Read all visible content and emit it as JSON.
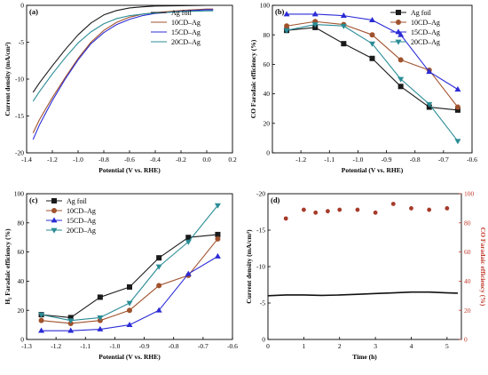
{
  "colors": {
    "ag_foil": "#1a1a1a",
    "cd10": "#a0522d",
    "cd15": "#2b2bd6",
    "cd20": "#2a8c96",
    "time_current": "#111111",
    "time_fe": "#a63a2a",
    "fe_axis": "#c0392b"
  },
  "chart_data": [
    {
      "id": "a",
      "panel_label": "(a)",
      "type": "line",
      "xlabel": "Potential (V vs. RHE)",
      "ylabel": "Current density (mA/cm²)",
      "xlim": [
        -1.4,
        0.2
      ],
      "ylim": [
        -20,
        0
      ],
      "xticks": [
        -1.4,
        -1.2,
        -1.0,
        -0.8,
        -0.6,
        -0.4,
        -0.2,
        0.0,
        0.2
      ],
      "xtick_labels": [
        "-1.4",
        "-1.2",
        "-1.0",
        "-0.8",
        "-0.6",
        "-0.4",
        "-0.2",
        "0.0",
        "0.2"
      ],
      "yticks": [
        -20,
        -15,
        -10,
        -5,
        0
      ],
      "ytick_labels": [
        "-20",
        "-15",
        "-10",
        "-5",
        "0"
      ],
      "legend_position": "top-right",
      "series": [
        {
          "name": "Ag foil",
          "color_key": "ag_foil",
          "x": [
            -1.35,
            -1.3,
            -1.2,
            -1.1,
            -1.0,
            -0.9,
            -0.8,
            -0.7,
            -0.6,
            -0.5,
            -0.4,
            -0.2,
            0.0,
            0.05
          ],
          "y": [
            -11.8,
            -10.5,
            -8.2,
            -6.0,
            -4.0,
            -2.4,
            -1.3,
            -0.7,
            -0.35,
            -0.2,
            -0.1,
            -0.05,
            0.0,
            0.0
          ]
        },
        {
          "name": "10CD–Ag",
          "color_key": "cd10",
          "x": [
            -1.35,
            -1.3,
            -1.2,
            -1.1,
            -1.0,
            -0.9,
            -0.8,
            -0.7,
            -0.6,
            -0.5,
            -0.4,
            -0.2,
            0.0,
            0.05
          ],
          "y": [
            -17.3,
            -15.5,
            -12.5,
            -9.8,
            -7.2,
            -5.0,
            -3.4,
            -2.3,
            -1.6,
            -1.2,
            -1.0,
            -0.7,
            -0.5,
            -0.5
          ]
        },
        {
          "name": "15CD–Ag",
          "color_key": "cd15",
          "x": [
            -1.35,
            -1.3,
            -1.2,
            -1.1,
            -1.0,
            -0.9,
            -0.8,
            -0.7,
            -0.6,
            -0.5,
            -0.4,
            -0.2,
            0.0,
            0.05
          ],
          "y": [
            -18.2,
            -16.2,
            -12.9,
            -10.0,
            -7.4,
            -5.2,
            -3.7,
            -2.6,
            -1.9,
            -1.4,
            -1.1,
            -0.8,
            -0.6,
            -0.6
          ]
        },
        {
          "name": "20CD–Ag",
          "color_key": "cd20",
          "x": [
            -1.35,
            -1.3,
            -1.2,
            -1.1,
            -1.0,
            -0.9,
            -0.8,
            -0.7,
            -0.6,
            -0.5,
            -0.4,
            -0.2,
            0.0,
            0.05
          ],
          "y": [
            -13.0,
            -11.7,
            -9.3,
            -7.1,
            -5.1,
            -3.6,
            -2.5,
            -1.8,
            -1.4,
            -1.2,
            -1.05,
            -0.85,
            -0.75,
            -0.75
          ]
        }
      ]
    },
    {
      "id": "b",
      "panel_label": "(b)",
      "type": "line",
      "xlabel": "Potential (V vs. RHE)",
      "ylabel": "CO Faradaic efficiency (%)",
      "xlim": [
        -1.3,
        -0.6
      ],
      "ylim": [
        0,
        100
      ],
      "xticks": [
        -1.3,
        -1.2,
        -1.1,
        -1.0,
        -0.9,
        -0.8,
        -0.7,
        -0.6
      ],
      "xtick_labels": [
        "",
        "-1.2",
        "-1.1",
        "-1.0",
        "-0.9",
        "-0.8",
        "-0.7",
        "-0.6"
      ],
      "yticks": [
        0,
        20,
        40,
        60,
        80,
        100
      ],
      "ytick_labels": [
        "0",
        "20",
        "40",
        "60",
        "80",
        "100"
      ],
      "legend_position": "top-right",
      "series": [
        {
          "name": "Ag foil",
          "color_key": "ag_foil",
          "marker": "square",
          "x": [
            -1.25,
            -1.15,
            -1.05,
            -0.95,
            -0.85,
            -0.75,
            -0.65
          ],
          "y": [
            83,
            85,
            74,
            64,
            45,
            31,
            29
          ]
        },
        {
          "name": "10CD–Ag",
          "color_key": "cd10",
          "marker": "circle",
          "x": [
            -1.25,
            -1.15,
            -1.05,
            -0.95,
            -0.85,
            -0.75,
            -0.65
          ],
          "y": [
            86,
            89,
            87,
            80,
            63,
            56,
            31
          ]
        },
        {
          "name": "15CD–Ag",
          "color_key": "cd15",
          "marker": "triangle-up",
          "x": [
            -1.25,
            -1.15,
            -1.05,
            -0.95,
            -0.85,
            -0.75,
            -0.65
          ],
          "y": [
            94,
            94,
            93,
            90,
            80,
            55,
            43
          ]
        },
        {
          "name": "20CD–Ag",
          "color_key": "cd20",
          "marker": "triangle-down",
          "x": [
            -1.25,
            -1.15,
            -1.05,
            -0.95,
            -0.85,
            -0.75,
            -0.65
          ],
          "y": [
            83,
            87,
            86,
            74,
            50,
            33,
            8
          ]
        }
      ]
    },
    {
      "id": "c",
      "panel_label": "(c)",
      "type": "line",
      "xlabel": "Potential (V vs. RHE)",
      "ylabel": "H₂ Faradaic efficiency (%)",
      "xlim": [
        -1.3,
        -0.6
      ],
      "ylim": [
        0,
        100
      ],
      "xticks": [
        -1.3,
        -1.2,
        -1.1,
        -1.0,
        -0.9,
        -0.8,
        -0.7,
        -0.6
      ],
      "xtick_labels": [
        "-1.3",
        "-1.2",
        "-1.1",
        "-1.0",
        "-0.9",
        "-0.8",
        "-0.7",
        "-0.6"
      ],
      "yticks": [
        0,
        20,
        40,
        60,
        80,
        100
      ],
      "ytick_labels": [
        "0",
        "20",
        "40",
        "60",
        "80",
        "100"
      ],
      "legend_position": "top-left",
      "series": [
        {
          "name": "Ag foil",
          "color_key": "ag_foil",
          "marker": "square",
          "x": [
            -1.25,
            -1.15,
            -1.05,
            -0.95,
            -0.85,
            -0.75,
            -0.65
          ],
          "y": [
            17,
            15,
            29,
            36,
            56,
            70,
            72
          ]
        },
        {
          "name": "10CD–Ag",
          "color_key": "cd10",
          "marker": "circle",
          "x": [
            -1.25,
            -1.15,
            -1.05,
            -0.95,
            -0.85,
            -0.75,
            -0.65
          ],
          "y": [
            13,
            11,
            13,
            20,
            37,
            44,
            69
          ]
        },
        {
          "name": "15CD–Ag",
          "color_key": "cd15",
          "marker": "triangle-up",
          "x": [
            -1.25,
            -1.15,
            -1.05,
            -0.95,
            -0.85,
            -0.75,
            -0.65
          ],
          "y": [
            6,
            6,
            7,
            10,
            20,
            45,
            57
          ]
        },
        {
          "name": "20CD–Ag",
          "color_key": "cd20",
          "marker": "triangle-down",
          "x": [
            -1.25,
            -1.15,
            -1.05,
            -0.95,
            -0.85,
            -0.75,
            -0.65
          ],
          "y": [
            17,
            13,
            15,
            25,
            50,
            67,
            92
          ]
        }
      ]
    },
    {
      "id": "d",
      "panel_label": "(d)",
      "type": "scatter",
      "xlabel": "Time (h)",
      "ylabel": "Current density (mA/cm²)",
      "y2label": "CO Faradaic efficiency (%)",
      "xlim": [
        0,
        5.4
      ],
      "ylim": [
        0,
        -20
      ],
      "y2lim": [
        0,
        100
      ],
      "xticks": [
        0,
        1,
        2,
        3,
        4,
        5
      ],
      "xtick_labels": [
        "0",
        "1",
        "2",
        "3",
        "4",
        "5"
      ],
      "yticks": [
        0,
        -5,
        -10,
        -15,
        -20
      ],
      "ytick_labels": [
        "0",
        "-5",
        "-10",
        "-15",
        "-20"
      ],
      "y2ticks": [
        0,
        20,
        40,
        60,
        80,
        100
      ],
      "y2tick_labels": [
        "0",
        "20",
        "40",
        "60",
        "80",
        "100"
      ],
      "series": [
        {
          "axis": "y",
          "kind": "line",
          "color_key": "time_current",
          "x": [
            0.0,
            0.5,
            1.0,
            1.5,
            2.0,
            2.5,
            3.0,
            3.5,
            4.0,
            4.5,
            5.0,
            5.3
          ],
          "y": [
            -6.0,
            -6.1,
            -6.1,
            -6.05,
            -6.1,
            -6.2,
            -6.3,
            -6.4,
            -6.5,
            -6.5,
            -6.4,
            -6.35
          ]
        },
        {
          "axis": "y2",
          "kind": "points",
          "color_key": "time_fe",
          "x": [
            0.5,
            1.0,
            1.33,
            1.67,
            2.0,
            2.5,
            3.0,
            3.5,
            4.0,
            4.5,
            5.0
          ],
          "y": [
            83,
            89,
            87,
            88,
            89,
            89,
            87,
            93,
            90,
            89,
            90
          ]
        }
      ]
    }
  ]
}
